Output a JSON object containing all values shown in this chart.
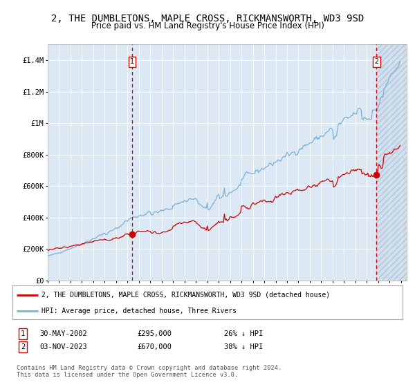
{
  "title": "2, THE DUMBLETONS, MAPLE CROSS, RICKMANSWORTH, WD3 9SD",
  "subtitle": "Price paid vs. HM Land Registry's House Price Index (HPI)",
  "title_fontsize": 10,
  "subtitle_fontsize": 8.5,
  "bg_color": "#dce9f5",
  "grid_color": "#ffffff",
  "red_line_color": "#cc0000",
  "blue_line_color": "#7bafd4",
  "marker_color": "#cc0000",
  "vline_color": "#cc0000",
  "box_color": "#cc0000",
  "ylim": [
    0,
    1500000
  ],
  "yticks": [
    0,
    200000,
    400000,
    600000,
    800000,
    1000000,
    1200000,
    1400000
  ],
  "ytick_labels": [
    "£0",
    "£200K",
    "£400K",
    "£600K",
    "£800K",
    "£1M",
    "£1.2M",
    "£1.4M"
  ],
  "year_start": 1995,
  "year_end": 2026,
  "transaction1_year": 2002.41,
  "transaction1_value": 295000,
  "transaction2_year": 2023.84,
  "transaction2_value": 670000,
  "legend_label1": "2, THE DUMBLETONS, MAPLE CROSS, RICKMANSWORTH, WD3 9SD (detached house)",
  "legend_label2": "HPI: Average price, detached house, Three Rivers",
  "note1_date": "30-MAY-2002",
  "note1_price": "£295,000",
  "note1_hpi": "26% ↓ HPI",
  "note2_date": "03-NOV-2023",
  "note2_price": "£670,000",
  "note2_hpi": "38% ↓ HPI",
  "footer": "Contains HM Land Registry data © Crown copyright and database right 2024.\nThis data is licensed under the Open Government Licence v3.0."
}
